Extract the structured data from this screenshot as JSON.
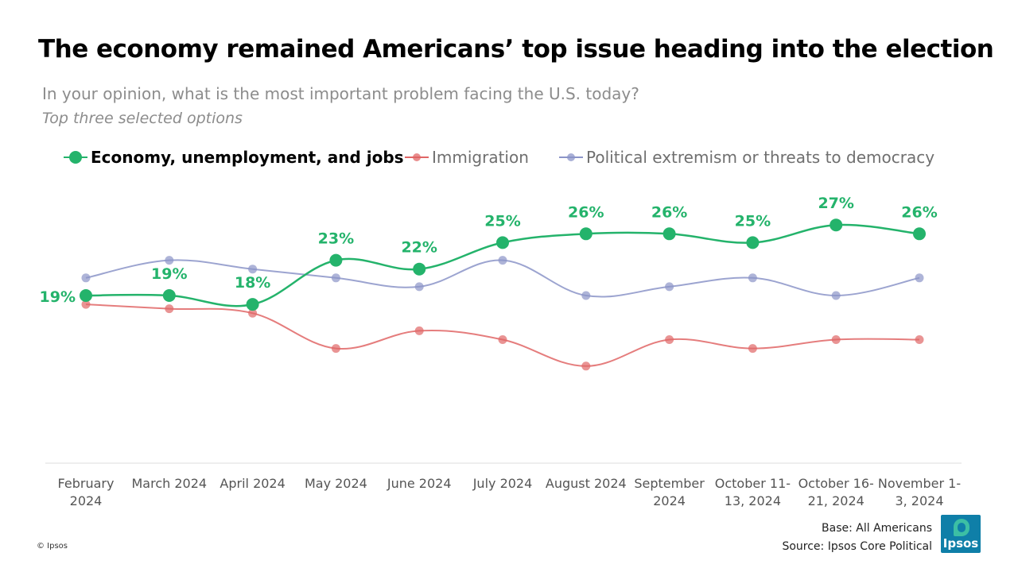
{
  "header": {
    "title": "The economy remained Americans’ top issue heading into the election",
    "subtitle": "In your opinion, what is the most important problem facing the U.S. today?",
    "note": "Top three selected options"
  },
  "colors": {
    "economy": "#24b36b",
    "immigration": "#e06666",
    "extremism": "#8b94c8",
    "axis": "#dddddd"
  },
  "chart_data": {
    "type": "line",
    "x": [
      "February 2024",
      "March 2024",
      "April 2024",
      "May 2024",
      "June 2024",
      "July 2024",
      "August 2024",
      "September 2024",
      "October 11-13, 2024",
      "October 16-21, 2024",
      "November 1-3, 2024"
    ],
    "tick_lines": [
      [
        "February",
        "2024"
      ],
      [
        "March 2024"
      ],
      [
        "April 2024"
      ],
      [
        "May 2024"
      ],
      [
        "June 2024"
      ],
      [
        "July 2024"
      ],
      [
        "August 2024"
      ],
      [
        "September",
        "2024"
      ],
      [
        "October 11-",
        "13, 2024"
      ],
      [
        "October 16-",
        "21, 2024"
      ],
      [
        "November 1-",
        "3, 2024"
      ]
    ],
    "series": [
      {
        "name": "Economy, unemployment, and jobs",
        "values": [
          19,
          19,
          18,
          23,
          22,
          25,
          26,
          26,
          25,
          27,
          26
        ],
        "labels": [
          "19%",
          "19%",
          "18%",
          "23%",
          "22%",
          "25%",
          "26%",
          "26%",
          "25%",
          "27%",
          "26%"
        ]
      },
      {
        "name": "Immigration",
        "values": [
          18,
          17.5,
          17,
          13,
          15,
          14,
          11,
          14,
          13,
          14,
          14
        ]
      },
      {
        "name": "Political extremism or threats to democracy",
        "values": [
          21,
          23,
          22,
          21,
          20,
          23,
          19,
          20,
          21,
          19,
          21
        ]
      }
    ],
    "ylim": [
      0,
      30
    ],
    "legend_position": "top",
    "grid": false
  },
  "footer": {
    "copyright": "© Ipsos",
    "base": "Base: All Americans",
    "source": "Source: Ipsos Core Political",
    "logo_text": "Ipsos"
  }
}
